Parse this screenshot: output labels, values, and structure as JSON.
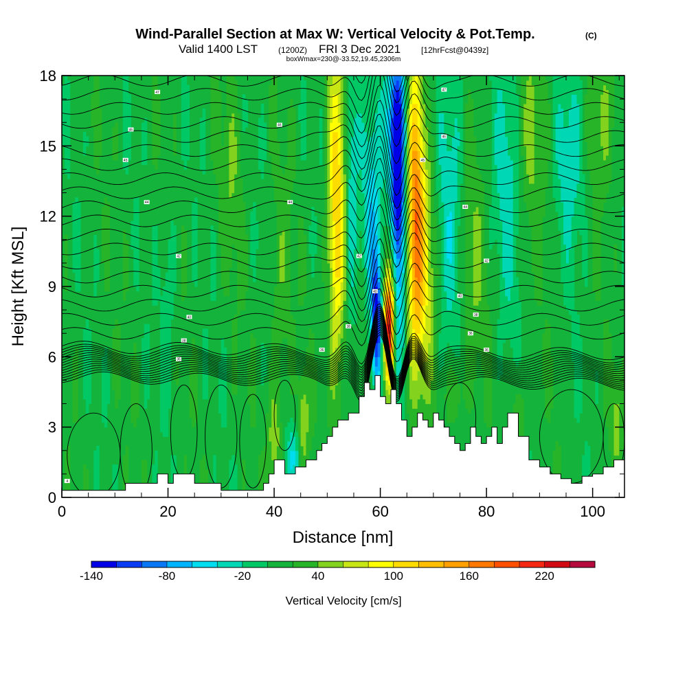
{
  "chart_data": {
    "type": "heatmap",
    "title": "Wind-Parallel Section at Max W: Vertical Velocity & Pot.Temp.",
    "title_mark": "(C)",
    "subtitle_valid": "Valid 1400 LST",
    "subtitle_utc": "(1200Z)",
    "subtitle_date": "FRI 3 Dec 2021",
    "subtitle_fcst": "[12hrFcst@0439z]",
    "subtitle_box": "boxWmax=230@-33.52,19.45,2306m",
    "xlabel": "Distance [nm]",
    "ylabel": "Height [Kft MSL]",
    "xlim": [
      0,
      106
    ],
    "ylim": [
      0,
      18
    ],
    "x_ticks": [
      0,
      20,
      40,
      60,
      80,
      100
    ],
    "y_ticks": [
      0,
      3,
      6,
      9,
      12,
      15,
      18
    ],
    "x_tick_labels": [
      "0",
      "20",
      "40",
      "60",
      "80",
      "100"
    ],
    "y_tick_labels": [
      "0",
      "3",
      "6",
      "9",
      "12",
      "15",
      "18"
    ],
    "colorbar": {
      "label": "Vertical Velocity [cm/s]",
      "min": -140,
      "max": 240,
      "step": 20,
      "tick_values": [
        "-140",
        "-80",
        "-20",
        "40",
        "100",
        "160",
        "220"
      ],
      "colors": [
        "#0000e6",
        "#0a3cf5",
        "#0a78f5",
        "#00b4ff",
        "#00dcf0",
        "#00d7b4",
        "#00c864",
        "#14b43c",
        "#28b428",
        "#82d21e",
        "#c8e614",
        "#ffff00",
        "#ffdc00",
        "#ffbe00",
        "#ffa000",
        "#ff7800",
        "#ff5000",
        "#f52814",
        "#d20a14",
        "#b40a3c"
      ]
    },
    "terrain_kft": {
      "x": [
        0,
        10,
        12,
        17,
        18,
        20,
        21,
        24,
        25,
        27,
        30,
        33,
        36,
        38,
        39,
        40,
        42,
        44,
        46,
        48,
        49,
        50,
        51,
        52,
        54,
        56,
        57,
        58,
        59,
        60,
        61,
        62,
        63,
        64,
        65,
        66,
        67,
        68,
        69,
        70,
        71,
        72,
        73,
        74,
        75,
        76,
        77,
        78,
        79,
        80,
        81,
        82,
        83,
        84,
        86,
        88,
        90,
        92,
        94,
        96,
        98,
        100,
        102,
        104,
        106
      ],
      "h": [
        0.3,
        0.3,
        0.6,
        0.6,
        1.0,
        0.6,
        1.0,
        1.0,
        0.6,
        0.6,
        0.3,
        0.3,
        0.3,
        0.6,
        1.0,
        1.6,
        1.0,
        1.3,
        1.6,
        2.0,
        2.3,
        2.6,
        3.0,
        3.3,
        3.6,
        4.3,
        4.9,
        4.6,
        5.2,
        4.3,
        4.0,
        4.6,
        4.0,
        3.3,
        2.6,
        3.0,
        3.6,
        3.3,
        3.0,
        3.6,
        3.3,
        3.0,
        2.6,
        2.3,
        2.0,
        2.3,
        3.0,
        2.6,
        2.3,
        2.6,
        3.0,
        2.3,
        3.0,
        3.6,
        2.6,
        1.6,
        1.3,
        1.0,
        0.8,
        0.6,
        0.9,
        1.0,
        1.3,
        1.6,
        1.6
      ]
    },
    "w_field_description": "Mostly weak vertical velocity (0 to 40 cm/s, green) with a strong couplet near x=55-68 nm: downdraft core around x=62-64 (to -140 cm/s, 9-17 kft), updraft cores near x=52 and x=66-67 (100-160 cm/s) and an intense updraft near x=61-62 (to 220 cm/s, 6-9 kft).",
    "contour_labels": [
      "4",
      "36",
      "38",
      "40",
      "42",
      "44",
      "45",
      "46",
      "47"
    ]
  }
}
